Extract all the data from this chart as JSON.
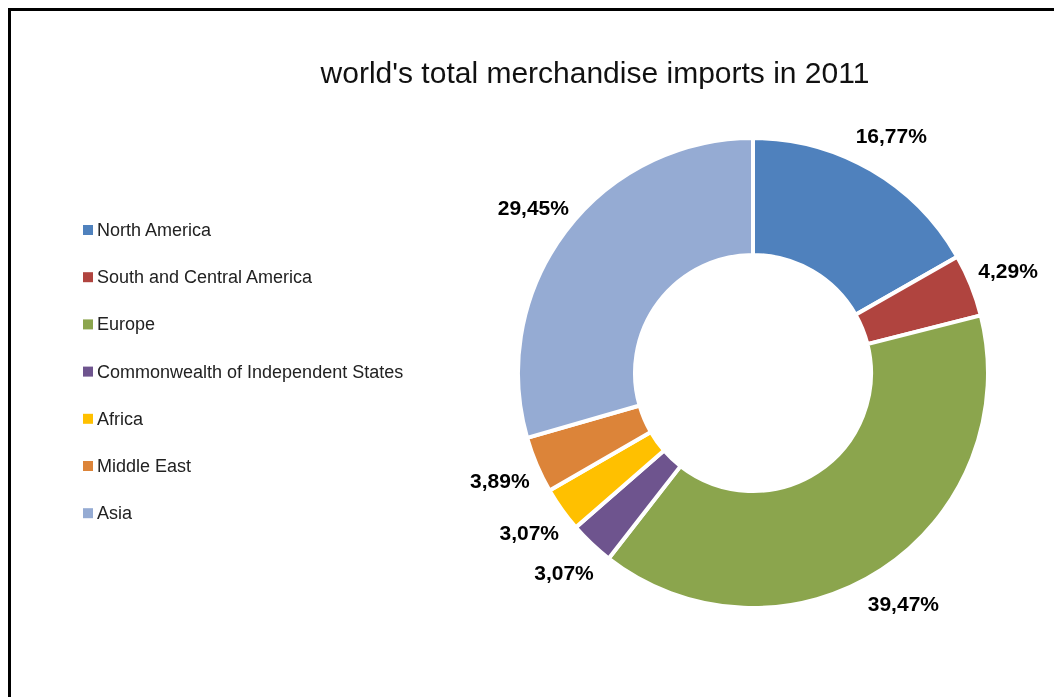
{
  "chart_data": {
    "type": "donut",
    "title": "world's total merchandise imports in 2011",
    "categories": [
      "North America",
      "South and Central America",
      "Europe",
      "Commonwealth of Independent States",
      "Africa",
      "Middle East",
      "Asia"
    ],
    "values": [
      16.77,
      4.29,
      39.47,
      3.07,
      3.07,
      3.89,
      29.45
    ],
    "colors": [
      "#4f81bd",
      "#b0443f",
      "#8ba54d",
      "#6e548e",
      "#ffc000",
      "#dc8439",
      "#95abd3"
    ],
    "value_labels": [
      "16,77%",
      "4,29%",
      "39,47%",
      "3,07%",
      "3,07%",
      "3,89%",
      "29,45%"
    ],
    "legend": "left"
  }
}
